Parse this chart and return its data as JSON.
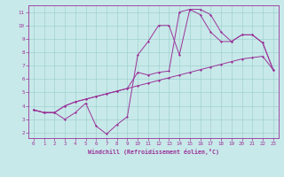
{
  "background_color": "#c8e9e9",
  "line_color": "#993399",
  "grid_color": "#99cccc",
  "xlabel": "Windchill (Refroidissement éolien,°C)",
  "xlim_min": -0.5,
  "xlim_max": 23.5,
  "ylim_min": 1.6,
  "ylim_max": 11.5,
  "xticks": [
    0,
    1,
    2,
    3,
    4,
    5,
    6,
    7,
    8,
    9,
    10,
    11,
    12,
    13,
    14,
    15,
    16,
    17,
    18,
    19,
    20,
    21,
    22,
    23
  ],
  "yticks": [
    2,
    3,
    4,
    5,
    6,
    7,
    8,
    9,
    10,
    11
  ],
  "line1_x": [
    0,
    1,
    2,
    3,
    4,
    5,
    6,
    7,
    8,
    9,
    10,
    11,
    12,
    13,
    14,
    15,
    16,
    17,
    18,
    19,
    20,
    21,
    22,
    23
  ],
  "line1_y": [
    3.7,
    3.5,
    3.5,
    4.0,
    4.3,
    4.5,
    4.7,
    4.9,
    5.1,
    5.3,
    5.5,
    5.7,
    5.9,
    6.1,
    6.3,
    6.5,
    6.7,
    6.9,
    7.1,
    7.3,
    7.5,
    7.6,
    7.7,
    6.7
  ],
  "line2_x": [
    0,
    1,
    2,
    3,
    4,
    5,
    6,
    7,
    8,
    9,
    10,
    11,
    12,
    13,
    14,
    15,
    16,
    17,
    18,
    19,
    20,
    21,
    22,
    23
  ],
  "line2_y": [
    3.7,
    3.5,
    3.5,
    3.0,
    3.5,
    4.2,
    2.5,
    1.9,
    2.6,
    3.2,
    7.8,
    8.8,
    10.0,
    10.0,
    7.8,
    11.2,
    11.2,
    10.8,
    9.5,
    8.8,
    9.3,
    9.3,
    8.7,
    6.7
  ],
  "line3_x": [
    0,
    1,
    2,
    3,
    4,
    5,
    6,
    7,
    8,
    9,
    10,
    11,
    12,
    13,
    14,
    15,
    16,
    17,
    18,
    19,
    20,
    21,
    22,
    23
  ],
  "line3_y": [
    3.7,
    3.5,
    3.5,
    4.0,
    4.3,
    4.5,
    4.7,
    4.9,
    5.1,
    5.3,
    6.5,
    6.3,
    6.5,
    6.6,
    11.0,
    11.2,
    10.8,
    9.5,
    8.8,
    8.8,
    9.3,
    9.3,
    8.7,
    6.7
  ],
  "tick_fontsize": 4.2,
  "xlabel_fontsize": 4.8,
  "marker_size": 1.5,
  "line_width": 0.7
}
